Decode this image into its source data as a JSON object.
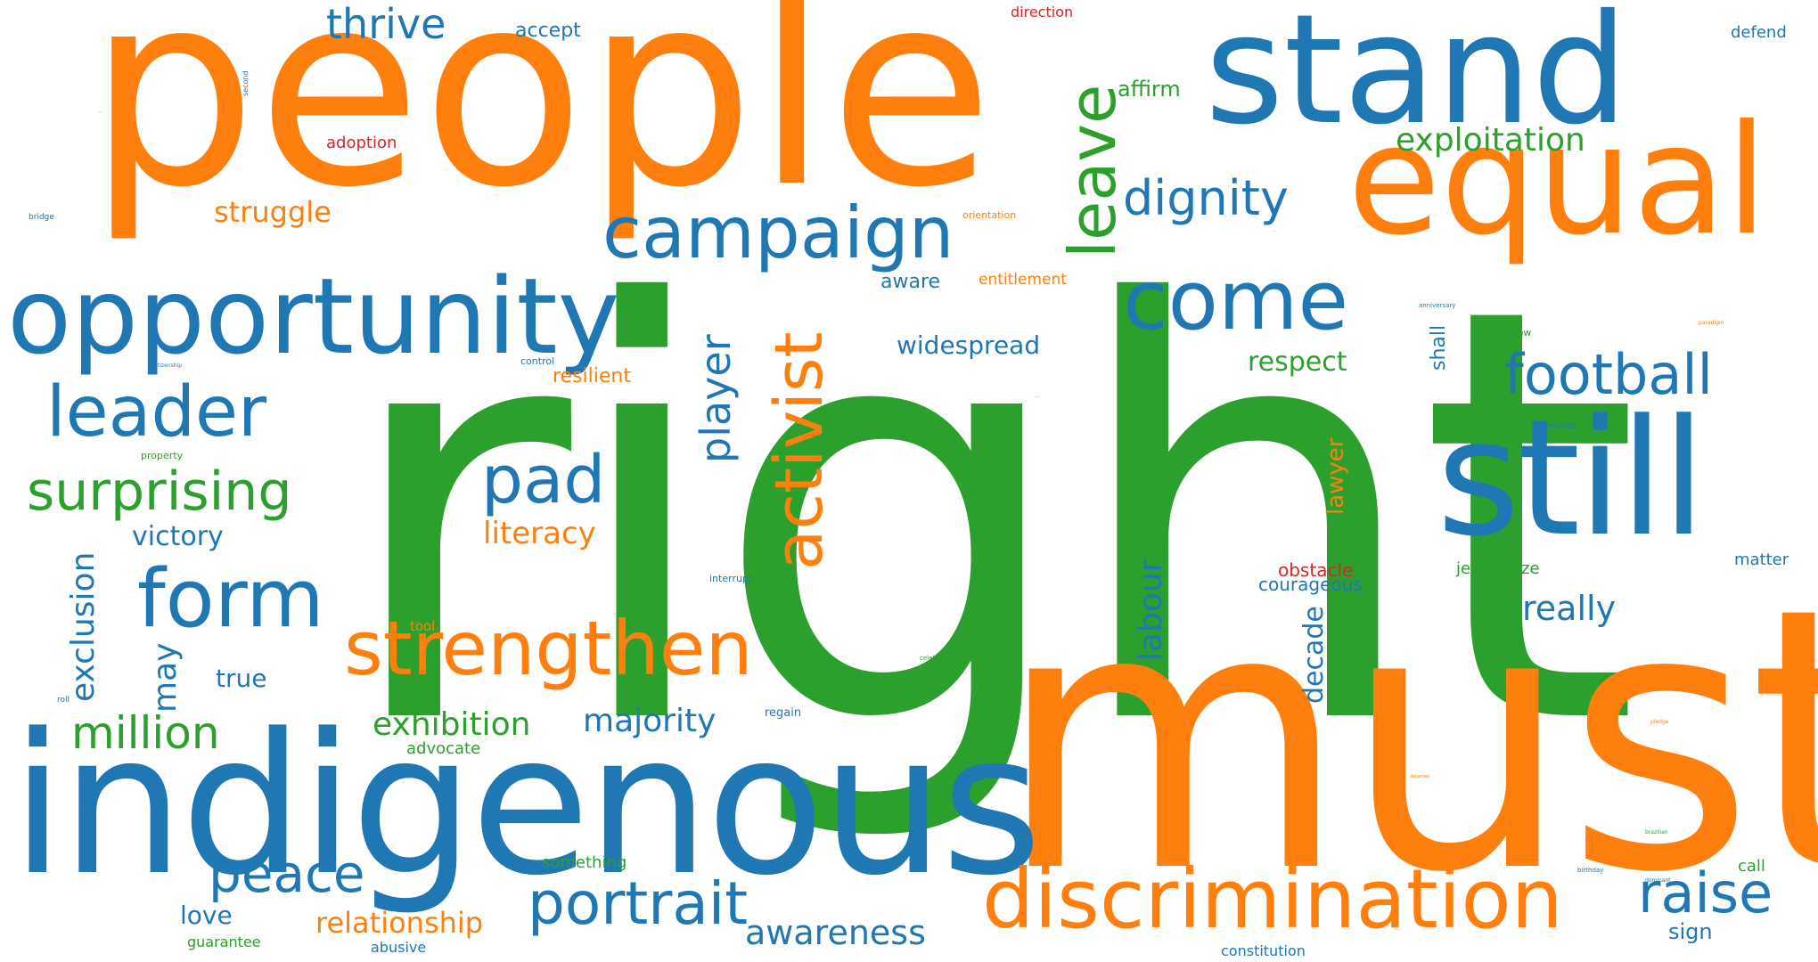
{
  "colors": {
    "blue": "#1f77b4",
    "orange": "#ff7f0e",
    "green": "#2ca02c",
    "red": "#d62728"
  },
  "words": {
    "right": "right",
    "must": "must",
    "people": "people",
    "indigenous": "indigenous",
    "stand": "stand",
    "equal": "equal",
    "opportunity": "opportunity",
    "still": "still",
    "discrimination": "discrimination",
    "strengthen": "strengthen",
    "campaign": "campaign",
    "come": "come",
    "activist": "activist",
    "leave": "leave",
    "form": "form",
    "leader": "leader",
    "portrait": "portrait",
    "football": "football",
    "raise": "raise",
    "pad": "pad",
    "surprising": "surprising",
    "peace": "peace",
    "million": "million",
    "dignity": "dignity",
    "exclusion": "exclusion",
    "awareness": "awareness",
    "player": "player",
    "exploitation": "exploitation",
    "labour": "labour",
    "exhibition": "exhibition",
    "majority": "majority",
    "really": "really",
    "thrive": "thrive",
    "literacy": "literacy",
    "relationship": "relationship",
    "struggle": "struggle",
    "widespread": "widespread",
    "victory": "victory",
    "may": "may",
    "decade": "decade",
    "respect": "respect",
    "lawyer": "lawyer",
    "resilient": "resilient",
    "true": "true",
    "love": "love",
    "affirm": "affirm",
    "aware": "aware",
    "accept": "accept",
    "shall": "shall",
    "entitlement": "entitlement",
    "courageous": "courageous",
    "obstacle": "obstacle",
    "jeopardize": "jeopardize",
    "advocate": "advocate",
    "defend": "defend",
    "matter": "matter",
    "adoption": "adoption",
    "direction": "direction",
    "something": "something",
    "call": "call",
    "sign": "sign",
    "constitution": "constitution",
    "guarantee": "guarantee",
    "abusive": "abusive",
    "tool": "tool",
    "regain": "regain",
    "interrupt": "interrupt",
    "control": "control",
    "orientation": "orientation",
    "property": "property",
    "show": "show",
    "feminist": "feminist",
    "bridge": "bridge",
    "second": "second",
    "roll": "roll",
    "celebration": "celebration",
    "citizenship": "citizenship",
    "anniversary": "anniversary",
    "birthday": "birthday",
    "brazilian": "brazilian",
    "dominant": "dominant",
    "paradigm": "paradigm",
    "pledge": "pledge",
    "detainee": "detainee",
    "tiny1": "···",
    "tiny2": "···",
    "tiny3": "···"
  }
}
